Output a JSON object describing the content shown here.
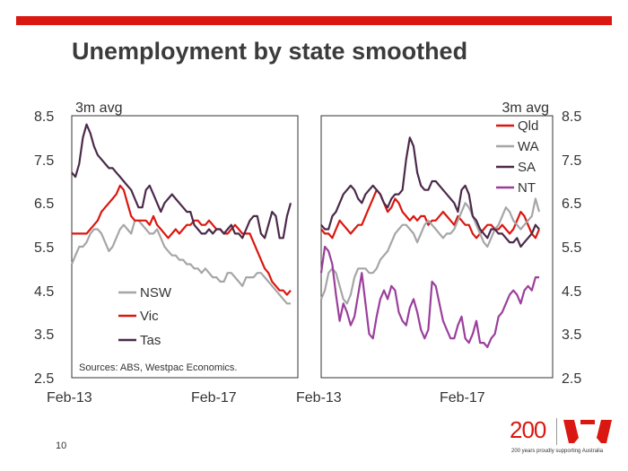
{
  "title": "Unemployment by state smoothed",
  "page_number": "10",
  "logo": {
    "number": "200",
    "tagline": "200 years proudly supporting Australia",
    "brand_color": "#DA1710"
  },
  "chart_data": [
    {
      "type": "line",
      "unit_label": "3m avg",
      "ylim": [
        2.5,
        8.5
      ],
      "yticks": [
        "8.5",
        "7.5",
        "6.5",
        "5.5",
        "4.5",
        "3.5",
        "2.5"
      ],
      "xticks": [
        "Feb-13",
        "Feb-17"
      ],
      "source": "Sources: ABS, Westpac Economics.",
      "legend_position": "bottom-left",
      "series": [
        {
          "name": "NSW",
          "color": "#A6A6A6",
          "values": [
            5.1,
            5.3,
            5.5,
            5.5,
            5.6,
            5.8,
            5.9,
            5.9,
            5.8,
            5.6,
            5.4,
            5.5,
            5.7,
            5.9,
            6.0,
            5.9,
            5.8,
            6.1,
            6.1,
            6.0,
            5.9,
            5.8,
            5.8,
            5.9,
            5.7,
            5.5,
            5.4,
            5.3,
            5.3,
            5.2,
            5.2,
            5.1,
            5.1,
            5.0,
            5.0,
            4.9,
            5.0,
            4.9,
            4.8,
            4.8,
            4.7,
            4.7,
            4.9,
            4.9,
            4.8,
            4.7,
            4.6,
            4.8,
            4.8,
            4.8,
            4.9,
            4.9,
            4.8,
            4.7,
            4.6,
            4.5,
            4.4,
            4.3,
            4.2,
            4.2
          ]
        },
        {
          "name": "Vic",
          "color": "#DA1710",
          "values": [
            5.8,
            5.8,
            5.8,
            5.8,
            5.8,
            5.9,
            6.0,
            6.1,
            6.3,
            6.4,
            6.5,
            6.6,
            6.7,
            6.9,
            6.8,
            6.5,
            6.2,
            6.1,
            6.1,
            6.1,
            6.1,
            6.0,
            6.2,
            6.0,
            5.9,
            5.8,
            5.7,
            5.8,
            5.9,
            5.8,
            5.9,
            6.0,
            6.0,
            6.1,
            6.1,
            6.0,
            6.0,
            6.1,
            6.0,
            5.9,
            5.9,
            5.8,
            5.8,
            5.9,
            6.0,
            5.9,
            5.8,
            5.8,
            5.8,
            5.6,
            5.4,
            5.2,
            5.0,
            4.9,
            4.7,
            4.6,
            4.5,
            4.5,
            4.4,
            4.5
          ]
        },
        {
          "name": "Tas",
          "color": "#4B2A4A",
          "values": [
            7.2,
            7.1,
            7.4,
            8.0,
            8.3,
            8.1,
            7.8,
            7.6,
            7.5,
            7.4,
            7.3,
            7.3,
            7.2,
            7.1,
            7.0,
            6.9,
            6.8,
            6.6,
            6.4,
            6.4,
            6.8,
            6.9,
            6.7,
            6.5,
            6.3,
            6.5,
            6.6,
            6.7,
            6.6,
            6.5,
            6.4,
            6.3,
            6.3,
            6.0,
            5.9,
            5.8,
            5.8,
            5.9,
            5.8,
            5.9,
            5.9,
            5.8,
            5.9,
            6.0,
            5.8,
            5.8,
            5.7,
            5.9,
            6.1,
            6.2,
            6.2,
            5.8,
            5.7,
            6.0,
            6.3,
            6.2,
            5.7,
            5.7,
            6.2,
            6.5
          ]
        }
      ]
    },
    {
      "type": "line",
      "unit_label": "3m avg",
      "ylim": [
        2.5,
        8.5
      ],
      "yticks": [
        "8.5",
        "7.5",
        "6.5",
        "5.5",
        "4.5",
        "3.5",
        "2.5"
      ],
      "xticks": [
        "Feb-13",
        "Feb-17"
      ],
      "legend_position": "top-right",
      "series": [
        {
          "name": "Qld",
          "color": "#DA1710",
          "values": [
            5.9,
            5.8,
            5.8,
            5.7,
            5.9,
            6.1,
            6.0,
            5.9,
            5.8,
            5.9,
            6.0,
            6.0,
            6.2,
            6.4,
            6.6,
            6.8,
            6.7,
            6.5,
            6.3,
            6.4,
            6.6,
            6.5,
            6.3,
            6.2,
            6.1,
            6.2,
            6.1,
            6.2,
            6.2,
            6.0,
            6.1,
            6.1,
            6.2,
            6.3,
            6.2,
            6.1,
            6.0,
            6.2,
            6.1,
            6.0,
            6.0,
            5.8,
            5.7,
            5.8,
            5.9,
            6.0,
            6.0,
            5.9,
            5.9,
            6.0,
            5.9,
            5.8,
            5.9,
            6.1,
            6.3,
            6.2,
            6.0,
            5.8,
            5.7,
            5.9
          ]
        },
        {
          "name": "WA",
          "color": "#A6A6A6",
          "values": [
            4.3,
            4.5,
            4.9,
            5.0,
            4.9,
            4.6,
            4.3,
            4.2,
            4.4,
            4.8,
            5.0,
            5.0,
            5.0,
            4.9,
            4.9,
            5.0,
            5.2,
            5.3,
            5.4,
            5.6,
            5.8,
            5.9,
            6.0,
            6.0,
            5.9,
            5.8,
            5.6,
            5.8,
            6.0,
            6.1,
            6.0,
            5.9,
            5.8,
            5.7,
            5.8,
            5.8,
            5.9,
            6.1,
            6.3,
            6.5,
            6.4,
            6.2,
            6.0,
            5.8,
            5.6,
            5.5,
            5.7,
            5.9,
            6.0,
            6.2,
            6.4,
            6.3,
            6.1,
            6.0,
            5.9,
            6.0,
            6.1,
            6.2,
            6.6,
            6.3
          ]
        },
        {
          "name": "SA",
          "color": "#4B2A4A",
          "values": [
            6.0,
            5.9,
            5.9,
            6.2,
            6.3,
            6.5,
            6.7,
            6.8,
            6.9,
            6.8,
            6.6,
            6.5,
            6.7,
            6.8,
            6.9,
            6.8,
            6.7,
            6.5,
            6.4,
            6.6,
            6.7,
            6.7,
            6.8,
            7.5,
            8.0,
            7.8,
            7.2,
            6.9,
            6.8,
            6.8,
            7.0,
            7.0,
            6.9,
            6.8,
            6.7,
            6.6,
            6.5,
            6.3,
            6.8,
            6.9,
            6.7,
            6.2,
            6.1,
            5.9,
            5.8,
            5.7,
            5.9,
            5.9,
            5.8,
            5.8,
            5.7,
            5.6,
            5.6,
            5.7,
            5.5,
            5.6,
            5.7,
            5.8,
            6.0,
            5.9
          ]
        },
        {
          "name": "NT",
          "color": "#9B3F9B",
          "values": [
            4.9,
            5.5,
            5.4,
            5.1,
            4.4,
            3.8,
            4.2,
            4.0,
            3.7,
            3.9,
            4.4,
            4.9,
            4.2,
            3.5,
            3.4,
            3.9,
            4.3,
            4.5,
            4.3,
            4.6,
            4.5,
            4.0,
            3.8,
            3.7,
            4.1,
            4.3,
            4.0,
            3.6,
            3.4,
            3.6,
            4.7,
            4.6,
            4.2,
            3.8,
            3.6,
            3.4,
            3.4,
            3.7,
            3.9,
            3.4,
            3.3,
            3.5,
            3.8,
            3.3,
            3.3,
            3.2,
            3.4,
            3.5,
            3.9,
            4.0,
            4.2,
            4.4,
            4.5,
            4.4,
            4.2,
            4.5,
            4.6,
            4.5,
            4.8,
            4.8
          ]
        }
      ]
    }
  ]
}
